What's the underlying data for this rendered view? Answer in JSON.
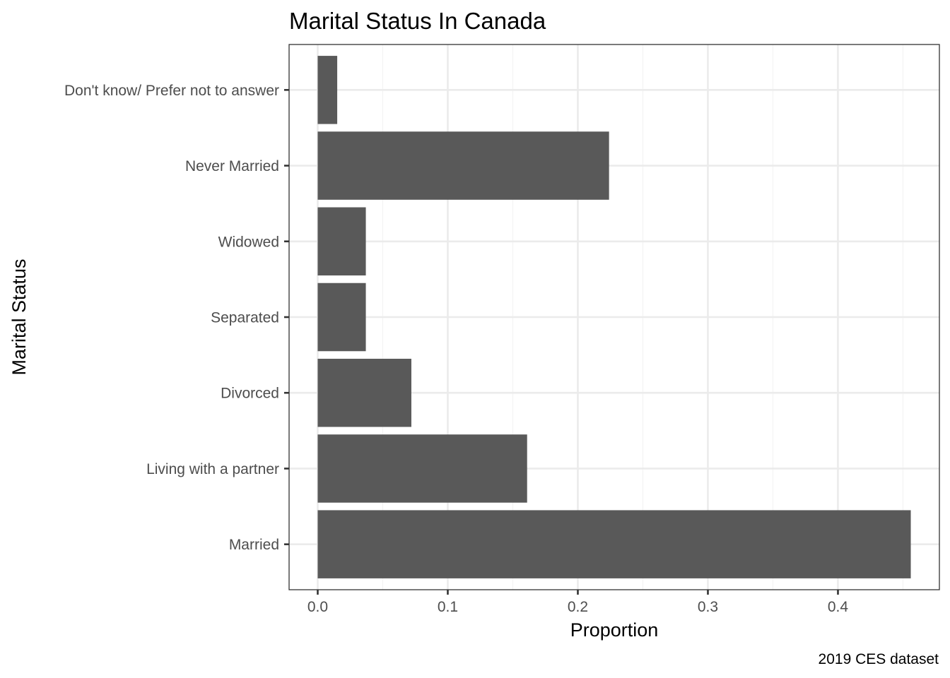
{
  "chart_data": {
    "type": "bar",
    "orientation": "horizontal",
    "title": "Marital Status In Canada",
    "xlabel": "Proportion",
    "ylabel": "Marital Status",
    "caption": "2019 CES dataset",
    "categories": [
      "Married",
      "Living with a partner",
      "Divorced",
      "Separated",
      "Widowed",
      "Never Married",
      "Don't know/ Prefer not to answer"
    ],
    "values": [
      0.456,
      0.161,
      0.072,
      0.037,
      0.037,
      0.224,
      0.015
    ],
    "xlim": [
      -0.022,
      0.478
    ],
    "xticks": [
      0.0,
      0.1,
      0.2,
      0.3,
      0.4
    ],
    "xtick_labels": [
      "0.0",
      "0.1",
      "0.2",
      "0.3",
      "0.4"
    ],
    "grid": true,
    "theme": "bw",
    "colors": {
      "bar": "#595959",
      "grid_major": "#ebebeb",
      "grid_minor": "#f4f4f4",
      "panel_border": "#333333"
    }
  }
}
